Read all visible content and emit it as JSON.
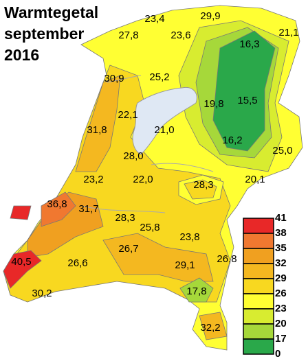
{
  "title": [
    "Warmtegetal",
    "september",
    "2016"
  ],
  "labels": [
    "23,4",
    "29,9",
    "27,8",
    "23,6",
    "21,1",
    "16,3",
    "30,9",
    "25,2",
    "19,8",
    "15,5",
    "22,1",
    "31,8",
    "21,0",
    "16,2",
    "25,0",
    "28,0",
    "23,2",
    "22,0",
    "20,1",
    "28,3",
    "36,8",
    "31,7",
    "28,3",
    "25,8",
    "23,8",
    "26,7",
    "26,8",
    "29,1",
    "40,5",
    "26,6",
    "17,8",
    "30,2",
    "32,2"
  ],
  "legend": {
    "ticks": [
      41,
      38,
      35,
      32,
      29,
      26,
      23,
      20,
      17,
      0
    ],
    "colors": [
      "#e82828",
      "#f07830",
      "#f0a020",
      "#f4b820",
      "#f8d820",
      "#ffff33",
      "#d8ec30",
      "#a6d83a",
      "#2aa84a"
    ]
  }
}
